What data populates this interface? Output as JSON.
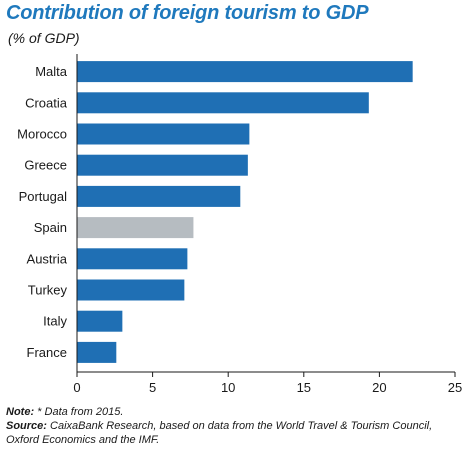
{
  "chart_data": {
    "type": "bar",
    "orientation": "horizontal",
    "title": "Contribution of foreign tourism to GDP",
    "subtitle": "(% of GDP)",
    "categories": [
      "Malta",
      "Croatia",
      "Morocco",
      "Greece",
      "Portugal",
      "Spain",
      "Austria",
      "Turkey",
      "Italy",
      "France"
    ],
    "values": [
      22.2,
      19.3,
      11.4,
      11.3,
      10.8,
      7.7,
      7.3,
      7.1,
      3.0,
      2.6
    ],
    "highlight": "Spain",
    "colors": {
      "default": "#1f6fb4",
      "highlight": "#b6bcc1",
      "title": "#1f79bd"
    },
    "xlim": [
      0,
      25
    ],
    "xticks": [
      0,
      5,
      10,
      15,
      20,
      25
    ],
    "xlabel": "",
    "ylabel": "",
    "grid": false,
    "legend": "none"
  },
  "notes": {
    "note_label": "Note:",
    "note_text": "* Data from 2015.",
    "source_label": "Source:",
    "source_text": "CaixaBank Research, based on data from the World Travel & Tourism Council, Oxford Economics and the IMF."
  }
}
